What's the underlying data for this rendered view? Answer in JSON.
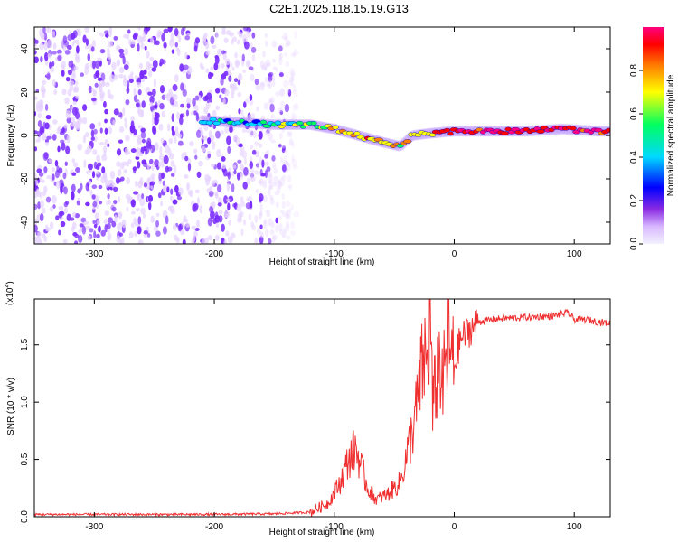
{
  "title": "C2E1.2025.118.15.19.G13",
  "colors": {
    "spectrogram_low": "#e6d2ff",
    "spectrogram_mid": "#7a2cff",
    "line": "#f03030",
    "colorbar": [
      "#f2f2ff",
      "#d8b8ff",
      "#8a2be2",
      "#0000ff",
      "#00d8ff",
      "#00ff60",
      "#ffff00",
      "#ff8000",
      "#ff0000",
      "#ff0080"
    ]
  },
  "chart_data": [
    {
      "type": "heatmap",
      "title": "C2E1.2025.118.15.19.G13",
      "xlabel": "Height of straight line (km)",
      "ylabel": "Frequency (Hz)",
      "xlim": [
        -350,
        130
      ],
      "ylim": [
        -50,
        50
      ],
      "x_ticks": [
        -300,
        -200,
        -100,
        0,
        100
      ],
      "y_ticks": [
        -40,
        -20,
        0,
        20,
        40
      ],
      "colorbar": {
        "label": "Normalized spectral amplitude",
        "range": [
          0,
          1
        ],
        "ticks": [
          "0.0",
          "0.2",
          "0.4",
          "0.6",
          "0.8"
        ],
        "tick_values": [
          0.0,
          0.2,
          0.4,
          0.6,
          0.8
        ]
      },
      "ridge": {
        "x": [
          -210,
          -180,
          -150,
          -120,
          -100,
          -80,
          -60,
          -45,
          -35,
          -20,
          0,
          30,
          60,
          90,
          120
        ],
        "y": [
          7,
          6,
          5,
          5,
          3,
          0,
          -3,
          -5,
          0,
          1,
          2,
          2,
          2,
          3,
          2
        ],
        "amplitude": [
          0.4,
          0.45,
          0.5,
          0.6,
          0.7,
          0.75,
          0.75,
          0.7,
          0.7,
          0.8,
          0.85,
          0.95,
          0.9,
          0.95,
          0.9
        ]
      },
      "noise_region": {
        "x_range": [
          -350,
          -130
        ],
        "amplitude_range": [
          0.05,
          0.25
        ]
      }
    },
    {
      "type": "line",
      "xlabel": "Height of straight line (km)",
      "ylabel": "SNR (10 * v/v)",
      "y_exponent_label": "(x10",
      "y_exponent_sup": "4",
      "xlim": [
        -350,
        130
      ],
      "ylim": [
        0,
        1.9
      ],
      "x_ticks": [
        -300,
        -200,
        -100,
        0,
        100
      ],
      "y_ticks": [
        "0.0",
        "0.5",
        "1.0",
        "1.5"
      ],
      "y_tick_values": [
        0,
        0.5,
        1.0,
        1.5
      ],
      "series": [
        {
          "x": [
            -350,
            -300,
            -250,
            -200,
            -150,
            -120,
            -105,
            -95,
            -88,
            -82,
            -78,
            -72,
            -65,
            -55,
            -45,
            -38,
            -32,
            -28,
            -25,
            -22,
            -20,
            -18,
            -15,
            -12,
            -10,
            -5,
            0,
            5,
            10,
            15,
            20,
            30,
            40,
            60,
            80,
            95,
            100,
            110,
            120,
            130
          ],
          "y": [
            0.02,
            0.02,
            0.02,
            0.02,
            0.025,
            0.04,
            0.12,
            0.3,
            0.5,
            0.6,
            0.45,
            0.25,
            0.15,
            0.2,
            0.3,
            0.6,
            0.9,
            1.2,
            1.4,
            1.3,
            1.9,
            0.9,
            1.2,
            1.4,
            1.1,
            1.5,
            1.3,
            1.55,
            1.6,
            1.65,
            1.7,
            1.72,
            1.73,
            1.74,
            1.75,
            1.78,
            1.72,
            1.72,
            1.7,
            1.69
          ]
        }
      ]
    }
  ]
}
